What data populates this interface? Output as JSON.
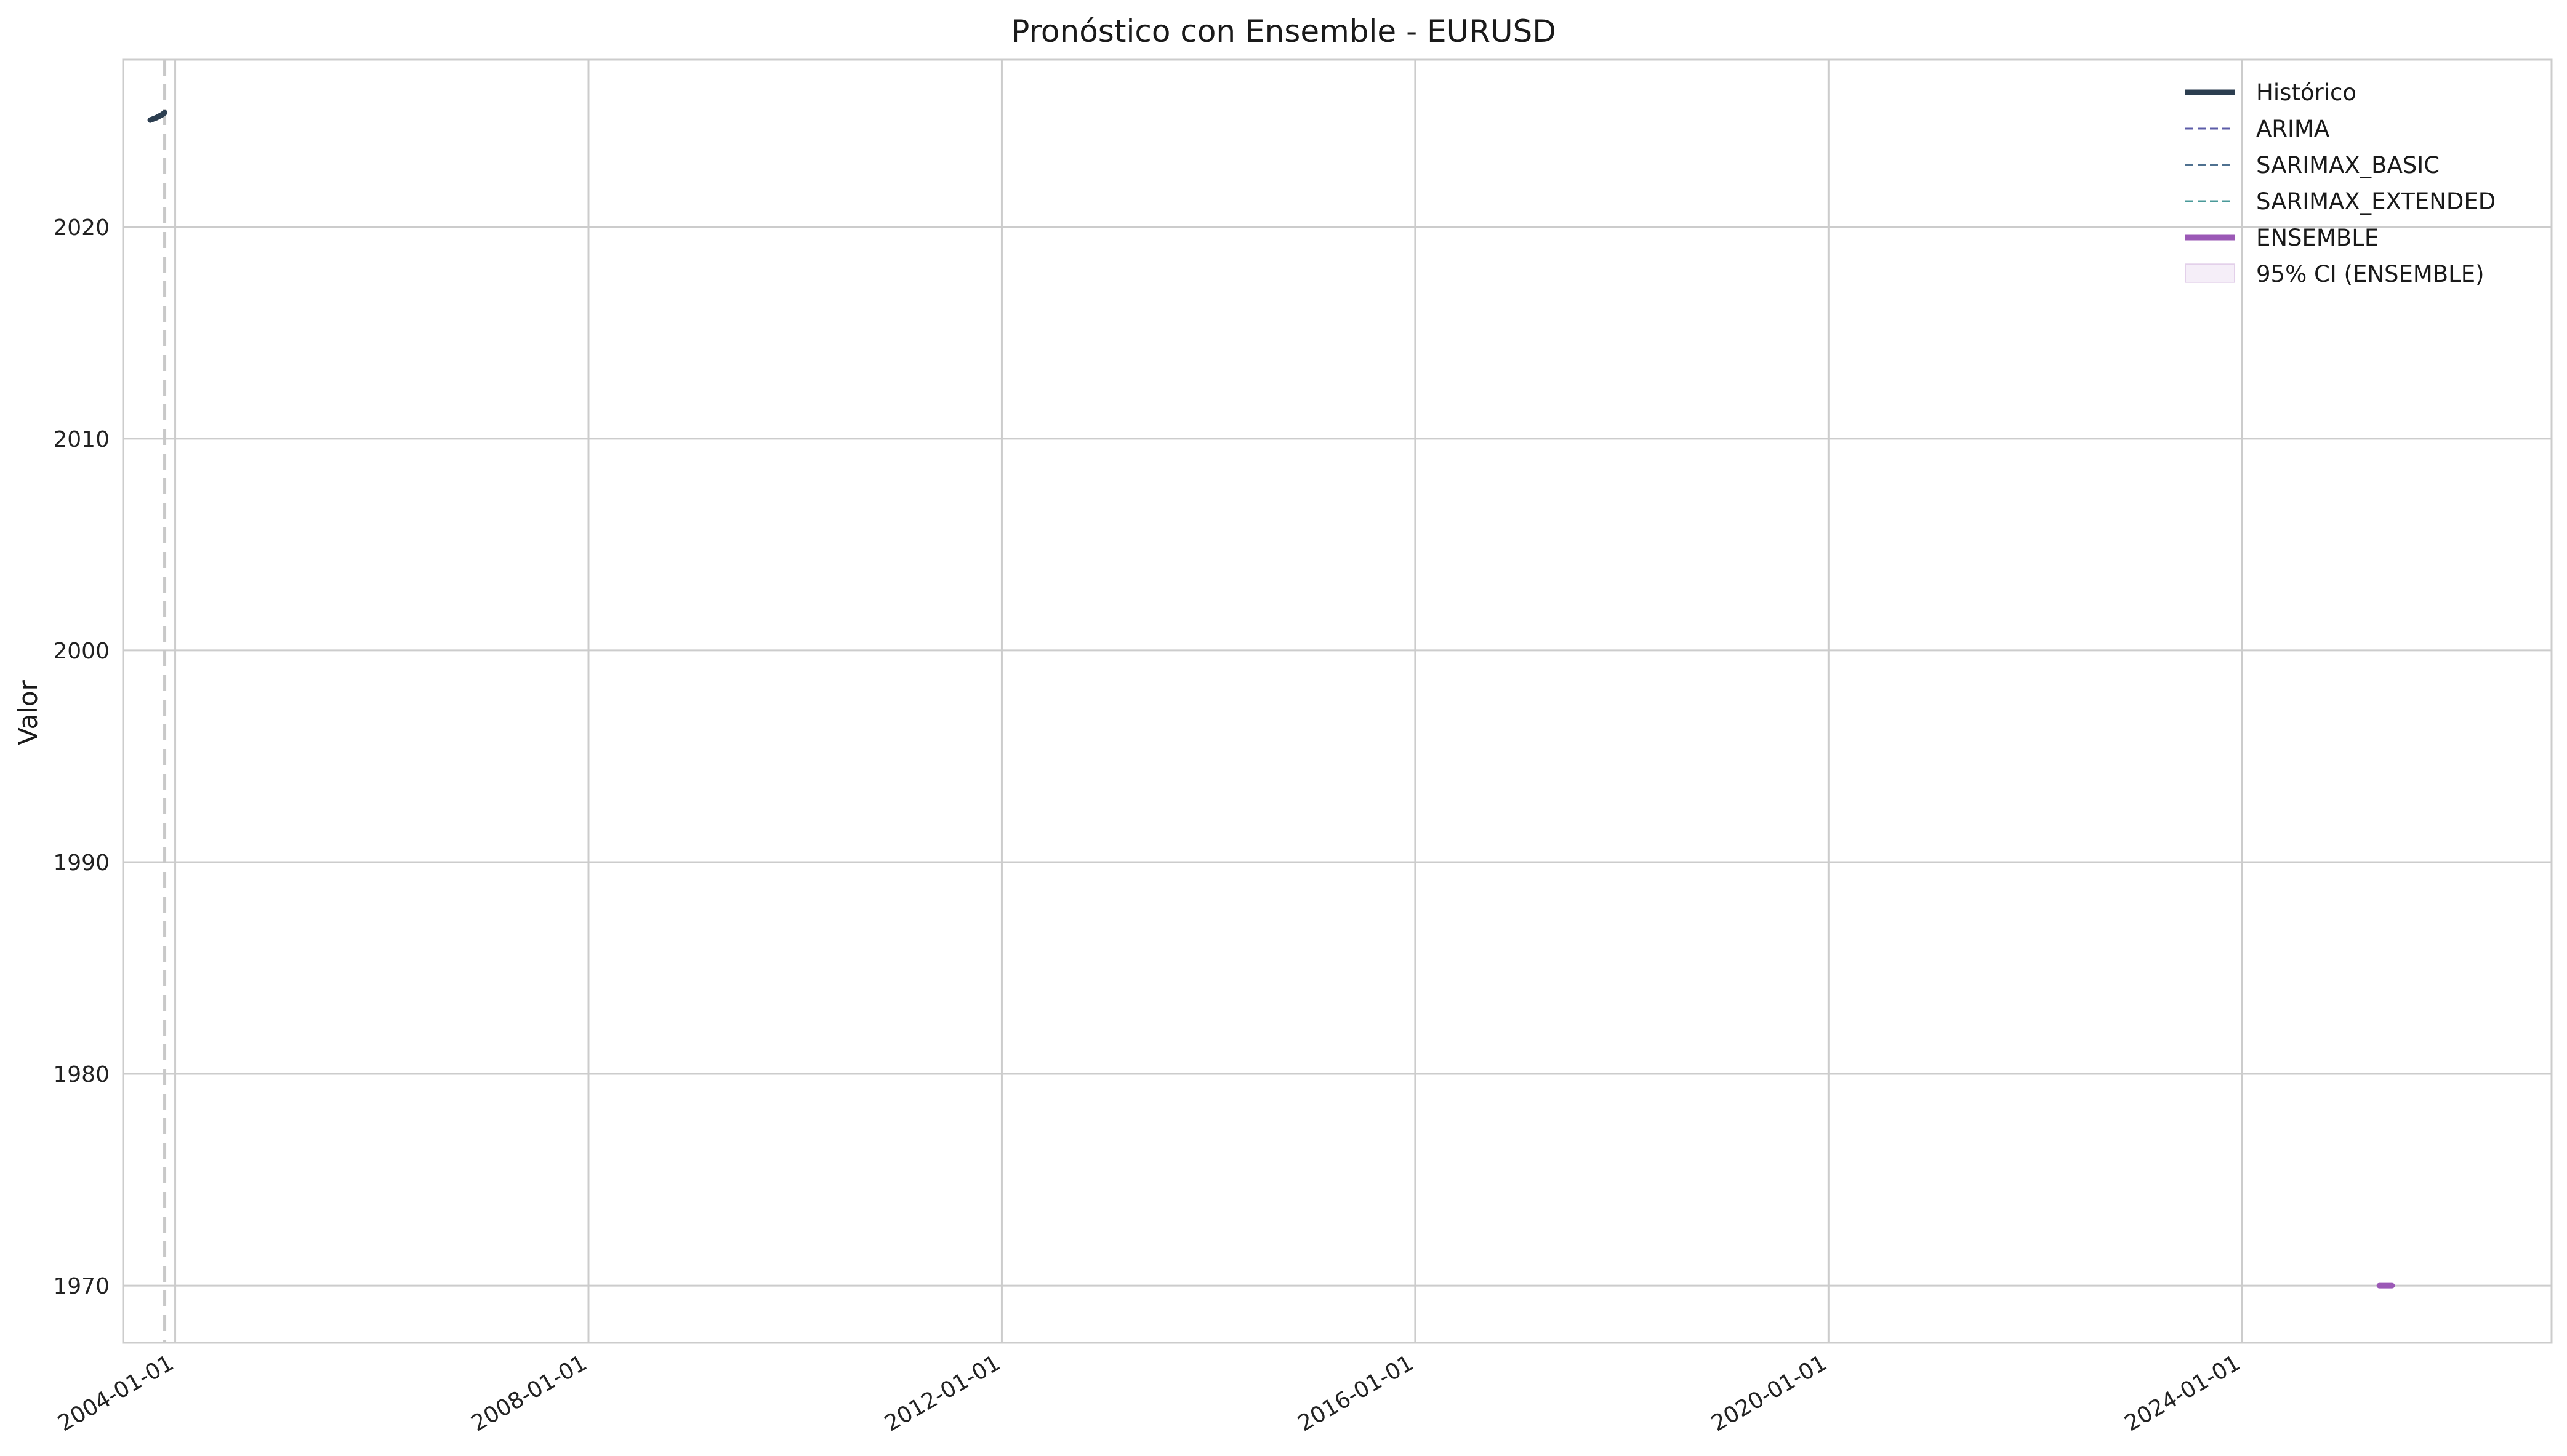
{
  "chart_data": {
    "type": "line",
    "title": "Pronóstico con Ensemble - EURUSD",
    "xlabel": "",
    "ylabel": "Valor",
    "x_axis_type": "date",
    "xlim": [
      "2003-07-01",
      "2026-12-31"
    ],
    "ylim": [
      1967.3,
      2027.9
    ],
    "x_ticks": [
      "2004-01-01",
      "2008-01-01",
      "2012-01-01",
      "2016-01-01",
      "2020-01-01",
      "2024-01-01"
    ],
    "y_ticks": [
      1970,
      1980,
      1990,
      2000,
      2010,
      2020
    ],
    "grid": true,
    "legend_position": "top-right",
    "forecast_start_marker": "2003-11-25",
    "series": [
      {
        "name": "Histórico",
        "style": "solid-thick",
        "color": "#2c3e50",
        "points": [
          {
            "x": "2003-10-05",
            "y": 2025.05
          },
          {
            "x": "2003-10-25",
            "y": 2025.15
          },
          {
            "x": "2003-11-15",
            "y": 2025.3
          },
          {
            "x": "2003-11-25",
            "y": 2025.4
          }
        ]
      },
      {
        "name": "ARIMA",
        "style": "dashed",
        "color": "#5c5ca8",
        "points": []
      },
      {
        "name": "SARIMAX_BASIC",
        "style": "dashed",
        "color": "#4f7190",
        "points": []
      },
      {
        "name": "SARIMAX_EXTENDED",
        "style": "dashed",
        "color": "#4a9a9a",
        "points": []
      },
      {
        "name": "ENSEMBLE",
        "style": "solid-thick",
        "color": "#9b59b6",
        "points": [
          {
            "x": "2025-05-01",
            "y": 1970.0
          },
          {
            "x": "2025-06-15",
            "y": 1970.0
          }
        ]
      },
      {
        "name": "95% CI (ENSEMBLE)",
        "style": "band",
        "color": "#9b59b6",
        "points": []
      }
    ]
  }
}
